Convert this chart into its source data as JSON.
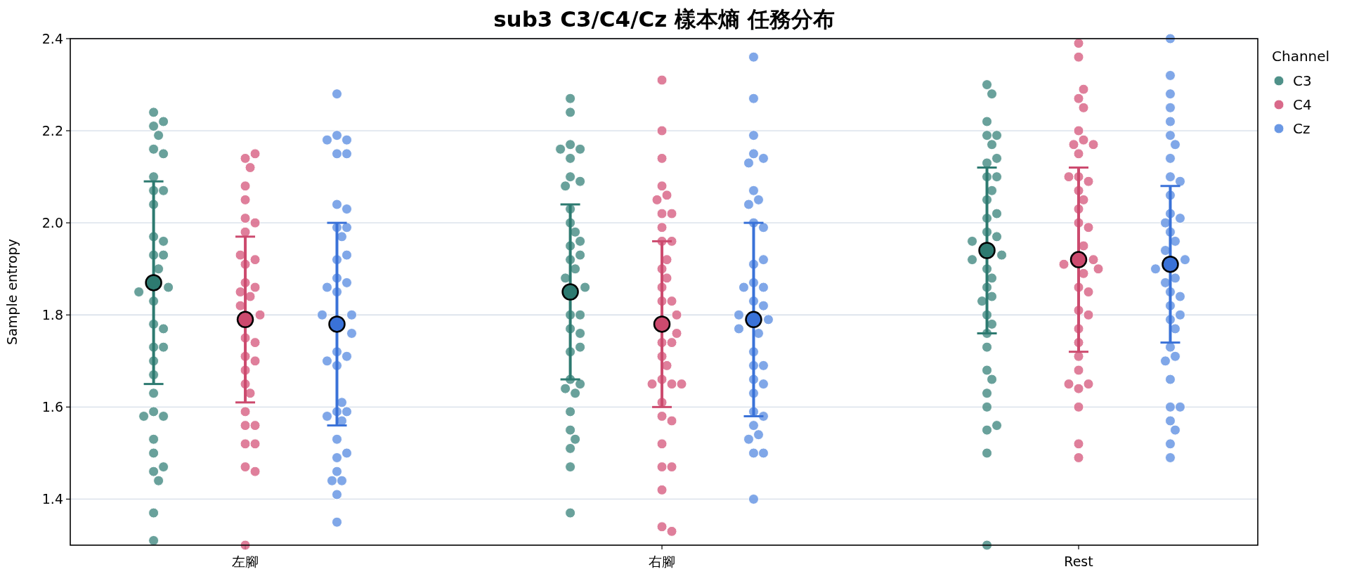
{
  "chart_data": {
    "type": "scatter",
    "title": "sub3 C3/C4/Cz 樣本熵 任務分布",
    "ylabel": "Sample entropy",
    "legend_title": "Channel",
    "categories": [
      "左腳",
      "右腳",
      "Rest"
    ],
    "ylim": [
      1.3,
      2.4
    ],
    "yticks": [
      1.4,
      1.6,
      1.8,
      {
        "value": 2,
        "label": "2.0"
      },
      2.2,
      2.4
    ],
    "grid": "y",
    "legend": "top right",
    "marker": "circle",
    "series": [
      {
        "name": "C3",
        "color": "#4f9189",
        "x": [
          "左腳",
          "左腳",
          "左腳",
          "左腳",
          "左腳",
          "左腳",
          "左腳",
          "左腳",
          "左腳",
          "左腳",
          "左腳",
          "左腳",
          "左腳",
          "左腳",
          "左腳",
          "左腳",
          "左腳",
          "左腳",
          "左腳",
          "左腳",
          "左腳",
          "左腳",
          "左腳",
          "左腳",
          "左腳",
          "左腳",
          "左腳",
          "左腳",
          "左腳",
          "左腳",
          "左腳",
          "左腳",
          "左腳",
          "左腳",
          "左腳",
          "右腳",
          "右腳",
          "右腳",
          "右腳",
          "右腳",
          "右腳",
          "右腳",
          "右腳",
          "右腳",
          "右腳",
          "右腳",
          "右腳",
          "右腳",
          "右腳",
          "右腳",
          "右腳",
          "右腳",
          "右腳",
          "右腳",
          "右腳",
          "右腳",
          "右腳",
          "右腳",
          "右腳",
          "右腳",
          "右腳",
          "右腳",
          "右腳",
          "右腳",
          "右腳",
          "右腳",
          "右腳",
          "右腳",
          "右腳",
          "右腳",
          "Rest",
          "Rest",
          "Rest",
          "Rest",
          "Rest",
          "Rest",
          "Rest",
          "Rest",
          "Rest",
          "Rest",
          "Rest",
          "Rest",
          "Rest",
          "Rest",
          "Rest",
          "Rest",
          "Rest",
          "Rest",
          "Rest",
          "Rest",
          "Rest",
          "Rest",
          "Rest",
          "Rest",
          "Rest",
          "Rest",
          "Rest",
          "Rest",
          "Rest",
          "Rest",
          "Rest",
          "Rest",
          "Rest",
          "Rest",
          "Rest",
          "Rest"
        ],
        "values": [
          2.24,
          2.21,
          2.22,
          2.19,
          2.1,
          2.16,
          2.15,
          2.04,
          2.07,
          2.07,
          1.97,
          1.93,
          1.9,
          1.93,
          1.96,
          1.86,
          1.85,
          1.83,
          1.78,
          1.73,
          1.77,
          1.7,
          1.73,
          1.67,
          1.63,
          1.59,
          1.58,
          1.58,
          1.53,
          1.5,
          1.46,
          1.47,
          1.44,
          1.37,
          1.31,
          2.14,
          2.27,
          2.24,
          2.17,
          2.16,
          2.16,
          2.1,
          2.09,
          2.08,
          2.03,
          2.0,
          1.98,
          1.95,
          1.96,
          1.92,
          1.93,
          1.9,
          1.88,
          1.86,
          1.8,
          1.8,
          1.77,
          1.76,
          1.72,
          1.73,
          1.66,
          1.65,
          1.64,
          1.63,
          1.59,
          1.55,
          1.53,
          1.51,
          1.47,
          1.37,
          2.3,
          2.28,
          2.22,
          2.19,
          2.19,
          2.17,
          2.13,
          2.14,
          2.1,
          2.1,
          2.05,
          2.07,
          2.01,
          2.02,
          1.98,
          1.97,
          1.96,
          1.93,
          1.92,
          1.9,
          1.86,
          1.88,
          1.84,
          1.83,
          1.8,
          1.78,
          1.76,
          1.73,
          1.68,
          1.66,
          1.63,
          1.6,
          1.55,
          1.56,
          1.5,
          1.3
        ]
      },
      {
        "name": "C4",
        "color": "#d9698a",
        "x": [
          "左腳",
          "左腳",
          "左腳",
          "左腳",
          "左腳",
          "左腳",
          "左腳",
          "左腳",
          "左腳",
          "左腳",
          "左腳",
          "左腳",
          "左腳",
          "左腳",
          "左腳",
          "左腳",
          "左腳",
          "左腳",
          "左腳",
          "左腳",
          "左腳",
          "左腳",
          "左腳",
          "左腳",
          "左腳",
          "左腳",
          "左腳",
          "左腳",
          "左腳",
          "左腳",
          "左腳",
          "左腳",
          "右腳",
          "右腳",
          "右腳",
          "右腳",
          "右腳",
          "右腳",
          "右腳",
          "右腳",
          "右腳",
          "右腳",
          "右腳",
          "右腳",
          "右腳",
          "右腳",
          "右腳",
          "右腳",
          "右腳",
          "右腳",
          "右腳",
          "右腳",
          "右腳",
          "右腳",
          "右腳",
          "右腳",
          "右腳",
          "右腳",
          "右腳",
          "右腳",
          "右腳",
          "右腳",
          "右腳",
          "右腳",
          "右腳",
          "右腳",
          "右腳",
          "右腳",
          "Rest",
          "Rest",
          "Rest",
          "Rest",
          "Rest",
          "Rest",
          "Rest",
          "Rest",
          "Rest",
          "Rest",
          "Rest",
          "Rest",
          "Rest",
          "Rest",
          "Rest",
          "Rest",
          "Rest",
          "Rest",
          "Rest",
          "Rest",
          "Rest",
          "Rest",
          "Rest",
          "Rest",
          "Rest",
          "Rest",
          "Rest",
          "Rest",
          "Rest",
          "Rest",
          "Rest",
          "Rest",
          "Rest",
          "Rest",
          "Rest",
          "Rest",
          "Rest"
        ],
        "values": [
          2.14,
          2.15,
          2.12,
          2.08,
          2.05,
          2.01,
          2.0,
          1.98,
          1.91,
          1.92,
          1.93,
          1.87,
          1.86,
          1.85,
          1.84,
          1.8,
          1.82,
          1.75,
          1.74,
          1.71,
          1.7,
          1.68,
          1.65,
          1.63,
          1.59,
          1.56,
          1.56,
          1.52,
          1.52,
          1.47,
          1.46,
          1.3,
          2.31,
          2.2,
          2.14,
          2.08,
          2.06,
          2.05,
          2.02,
          1.99,
          2.02,
          1.96,
          1.96,
          1.9,
          1.92,
          1.88,
          1.86,
          1.83,
          1.83,
          1.8,
          1.76,
          1.74,
          1.74,
          1.71,
          1.69,
          1.66,
          1.65,
          1.65,
          1.65,
          1.61,
          1.58,
          1.57,
          1.52,
          1.47,
          1.47,
          1.42,
          1.34,
          1.33,
          2.39,
          2.36,
          2.27,
          2.29,
          2.25,
          2.2,
          2.18,
          2.17,
          2.17,
          2.15,
          2.1,
          2.09,
          2.1,
          2.07,
          2.03,
          2.05,
          2.0,
          1.99,
          1.95,
          1.92,
          1.91,
          1.89,
          1.9,
          1.86,
          1.85,
          1.81,
          1.8,
          1.77,
          1.74,
          1.71,
          1.68,
          1.64,
          1.65,
          1.65,
          1.6,
          1.52,
          1.49
        ]
      },
      {
        "name": "Cz",
        "color": "#6a98e4",
        "x": [
          "左腳",
          "左腳",
          "左腳",
          "左腳",
          "左腳",
          "左腳",
          "左腳",
          "左腳",
          "左腳",
          "左腳",
          "左腳",
          "左腳",
          "左腳",
          "左腳",
          "左腳",
          "左腳",
          "左腳",
          "左腳",
          "左腳",
          "左腳",
          "左腳",
          "左腳",
          "左腳",
          "左腳",
          "左腳",
          "左腳",
          "左腳",
          "左腳",
          "左腳",
          "左腳",
          "左腳",
          "左腳",
          "左腳",
          "左腳",
          "左腳",
          "左腳",
          "左腳",
          "右腳",
          "右腳",
          "右腳",
          "右腳",
          "右腳",
          "右腳",
          "右腳",
          "右腳",
          "右腳",
          "右腳",
          "右腳",
          "右腳",
          "右腳",
          "右腳",
          "右腳",
          "右腳",
          "右腳",
          "右腳",
          "右腳",
          "右腳",
          "右腳",
          "右腳",
          "右腳",
          "右腳",
          "右腳",
          "右腳",
          "右腳",
          "右腳",
          "右腳",
          "右腳",
          "右腳",
          "右腳",
          "右腳",
          "右腳",
          "右腳",
          "右腳",
          "Rest",
          "Rest",
          "Rest",
          "Rest",
          "Rest",
          "Rest",
          "Rest",
          "Rest",
          "Rest",
          "Rest",
          "Rest",
          "Rest",
          "Rest",
          "Rest",
          "Rest",
          "Rest",
          "Rest",
          "Rest",
          "Rest",
          "Rest",
          "Rest",
          "Rest",
          "Rest",
          "Rest",
          "Rest",
          "Rest",
          "Rest",
          "Rest",
          "Rest",
          "Rest",
          "Rest",
          "Rest",
          "Rest",
          "Rest",
          "Rest",
          "Rest",
          "Rest"
        ],
        "values": [
          2.28,
          2.19,
          2.18,
          2.18,
          2.15,
          2.15,
          2.04,
          2.03,
          1.99,
          1.99,
          1.97,
          1.92,
          1.93,
          1.88,
          1.87,
          1.85,
          1.86,
          1.8,
          1.8,
          1.76,
          1.72,
          1.69,
          1.71,
          1.7,
          1.59,
          1.61,
          1.59,
          1.57,
          1.58,
          1.53,
          1.49,
          1.5,
          1.46,
          1.44,
          1.44,
          1.41,
          1.35,
          2.36,
          2.27,
          2.19,
          2.15,
          2.14,
          2.13,
          2.07,
          2.05,
          2.04,
          2.0,
          1.99,
          1.91,
          1.92,
          1.87,
          1.86,
          1.86,
          1.83,
          1.82,
          1.79,
          1.8,
          1.77,
          1.76,
          1.72,
          1.69,
          1.69,
          1.66,
          1.65,
          1.63,
          1.59,
          1.58,
          1.56,
          1.54,
          1.53,
          1.5,
          1.5,
          1.4,
          2.4,
          2.32,
          2.28,
          2.25,
          2.22,
          2.19,
          2.17,
          2.14,
          2.1,
          2.09,
          2.06,
          2.02,
          2.01,
          2.0,
          1.98,
          1.96,
          1.94,
          1.92,
          1.9,
          1.88,
          1.87,
          1.85,
          1.84,
          1.82,
          1.79,
          1.8,
          1.77,
          1.73,
          1.71,
          1.7,
          1.66,
          1.6,
          1.6,
          1.57,
          1.55,
          1.52,
          1.49
        ]
      },
      {
        "color": "#2d7a70",
        "x": [
          "左腳",
          "右腳",
          "Rest"
        ],
        "values": [
          1.87,
          1.85,
          1.94
        ],
        "errors": [
          0.22,
          0.19,
          0.18
        ]
      },
      {
        "color": "#cc4a6e",
        "x": [
          "左腳",
          "右腳",
          "Rest"
        ],
        "values": [
          1.79,
          1.78,
          1.92
        ],
        "errors": [
          0.18,
          0.18,
          0.2
        ]
      },
      {
        "color": "#3a72d8",
        "x": [
          "左腳",
          "右腳",
          "Rest"
        ],
        "values": [
          1.78,
          1.79,
          1.91
        ],
        "errors": [
          0.22,
          0.21,
          0.17
        ]
      }
    ]
  }
}
